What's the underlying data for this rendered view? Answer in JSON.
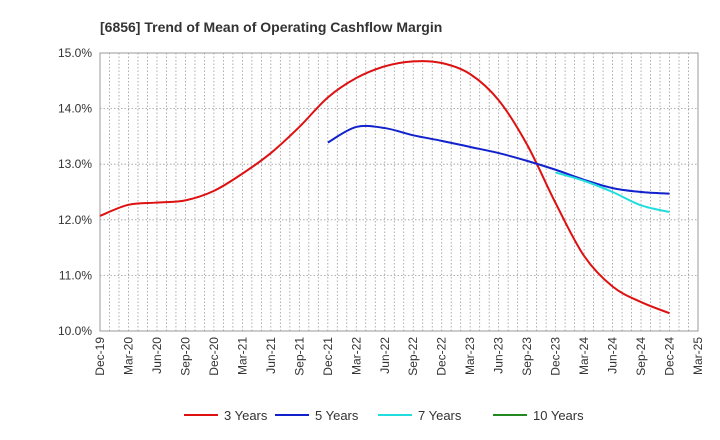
{
  "chart_data": {
    "type": "line",
    "title": "[6856]  Trend of Mean of Operating Cashflow Margin",
    "xlabel": "",
    "ylabel": "",
    "ylim": [
      10.0,
      15.0
    ],
    "yticks": [
      10.0,
      11.0,
      12.0,
      13.0,
      14.0,
      15.0
    ],
    "ytick_labels": [
      "10.0%",
      "11.0%",
      "12.0%",
      "13.0%",
      "14.0%",
      "15.0%"
    ],
    "categories": [
      "Dec-19",
      "Mar-20",
      "Jun-20",
      "Sep-20",
      "Dec-20",
      "Mar-21",
      "Jun-21",
      "Sep-21",
      "Dec-21",
      "Mar-22",
      "Jun-22",
      "Sep-22",
      "Dec-22",
      "Mar-23",
      "Jun-23",
      "Sep-23",
      "Dec-23",
      "Mar-24",
      "Jun-24",
      "Sep-24",
      "Dec-24",
      "Mar-25"
    ],
    "grid": true,
    "legend_position": "bottom",
    "series": [
      {
        "name": "3 Years",
        "color": "#dd1111",
        "values": [
          12.07,
          12.27,
          12.31,
          12.35,
          12.52,
          12.83,
          13.2,
          13.67,
          14.2,
          14.55,
          14.76,
          14.85,
          14.82,
          14.62,
          14.15,
          13.35,
          12.3,
          11.35,
          10.8,
          10.52,
          10.32,
          null
        ]
      },
      {
        "name": "5 Years",
        "color": "#1122cc",
        "values": [
          null,
          null,
          null,
          null,
          null,
          null,
          null,
          null,
          13.39,
          13.67,
          13.65,
          13.52,
          13.42,
          13.31,
          13.2,
          13.06,
          12.9,
          12.72,
          12.57,
          12.5,
          12.47,
          null
        ]
      },
      {
        "name": "7 Years",
        "color": "#22dddd",
        "values": [
          null,
          null,
          null,
          null,
          null,
          null,
          null,
          null,
          null,
          null,
          null,
          null,
          null,
          null,
          null,
          null,
          12.85,
          12.7,
          12.5,
          12.26,
          12.14,
          null
        ]
      },
      {
        "name": "10 Years",
        "color": "#228822",
        "values": [
          null,
          null,
          null,
          null,
          null,
          null,
          null,
          null,
          null,
          null,
          null,
          null,
          null,
          null,
          null,
          null,
          null,
          null,
          null,
          null,
          null,
          null
        ]
      }
    ]
  }
}
